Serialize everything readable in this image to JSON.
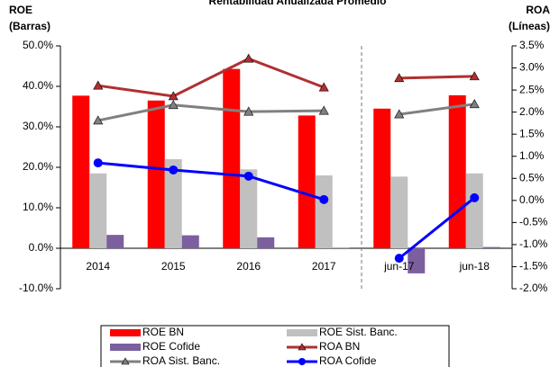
{
  "chart_data": {
    "type": "bar_line",
    "title": "Rentabilidad Anualizada Promedio",
    "y_label": "ROE",
    "y_sublabel": "(Barras)",
    "y2_label": "ROA",
    "y2_sublabel": "(Líneas)",
    "categories": [
      "2014",
      "2015",
      "2016",
      "2017",
      "jun-17",
      "jun-18"
    ],
    "divider_after_index": 3,
    "ylim": [
      -10,
      50
    ],
    "yticks": [
      {
        "value": -10,
        "label": "-10.0%"
      },
      {
        "value": 0,
        "label": "0.0%"
      },
      {
        "value": 10,
        "label": "10.0%"
      },
      {
        "value": 20,
        "label": "20.0%"
      },
      {
        "value": 30,
        "label": "30.0%"
      },
      {
        "value": 40,
        "label": "40.0%"
      },
      {
        "value": 50,
        "label": "50.0%"
      }
    ],
    "y2lim": [
      -2.0,
      3.5
    ],
    "y2ticks": [
      {
        "value": -2.0,
        "label": "-2.0%"
      },
      {
        "value": -1.5,
        "label": "-1.5%"
      },
      {
        "value": -1.0,
        "label": "-1.0%"
      },
      {
        "value": -0.5,
        "label": "-0.5%"
      },
      {
        "value": 0,
        "label": "0.0%"
      },
      {
        "value": 0.5,
        "label": "0.5%"
      },
      {
        "value": 1.0,
        "label": "1.0%"
      },
      {
        "value": 1.5,
        "label": "1.5%"
      },
      {
        "value": 2.0,
        "label": "2.0%"
      },
      {
        "value": 2.5,
        "label": "2.5%"
      },
      {
        "value": 3.0,
        "label": "3.0%"
      },
      {
        "value": 3.5,
        "label": "3.5%"
      }
    ],
    "series": [
      {
        "name": "ROE BN",
        "kind": "bar",
        "color": "#ff0000",
        "values": [
          37.7,
          36.5,
          44.3,
          32.8,
          34.5,
          37.8
        ]
      },
      {
        "name": "ROE Sist. Banc.",
        "kind": "bar",
        "color": "#c0c0c0",
        "values": [
          18.5,
          22.0,
          19.5,
          18.0,
          17.7,
          18.5
        ]
      },
      {
        "name": "ROE Cofide",
        "kind": "bar",
        "color": "#7b5f9e",
        "values": [
          3.3,
          3.2,
          2.7,
          0.1,
          -6.2,
          0.3
        ]
      },
      {
        "name": "ROA BN",
        "kind": "line",
        "marker": "triangle",
        "axis": "y2",
        "color": "#b03030",
        "values": [
          2.6,
          2.36,
          3.21,
          2.56,
          2.77,
          2.81
        ]
      },
      {
        "name": "ROA Sist. Banc.",
        "kind": "line",
        "marker": "triangle",
        "axis": "y2",
        "color": "#808080",
        "values": [
          1.81,
          2.16,
          2.01,
          2.03,
          1.95,
          2.18
        ]
      },
      {
        "name": "ROA Cofide",
        "kind": "line",
        "marker": "circle",
        "axis": "y2",
        "color": "#0000ff",
        "values": [
          0.85,
          0.69,
          0.55,
          0.02,
          -1.31,
          0.06
        ]
      }
    ]
  }
}
